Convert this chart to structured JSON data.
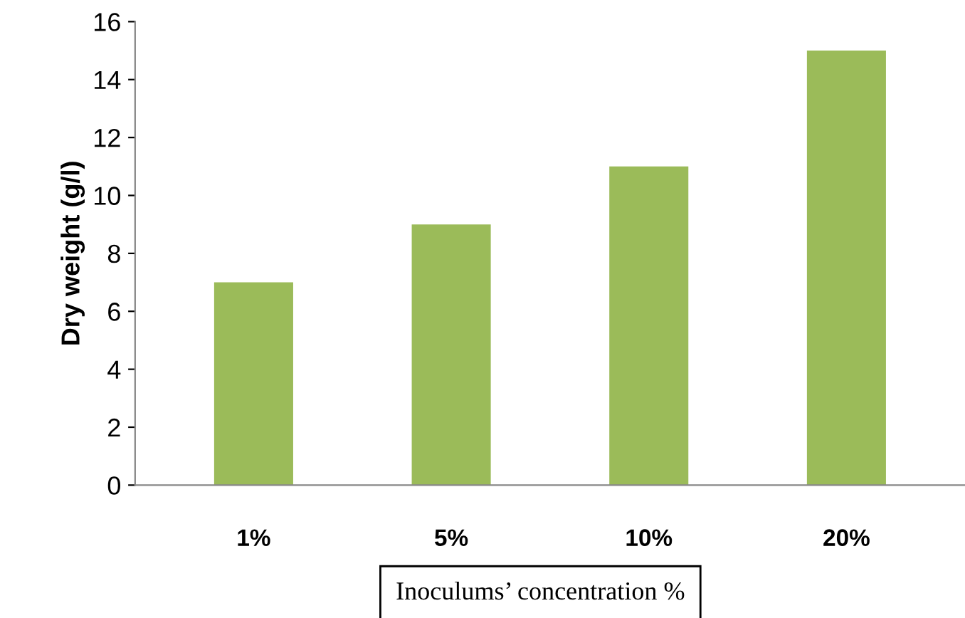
{
  "chart_data": {
    "type": "bar",
    "xlabel": "Inoculums’ concentration %",
    "ylabel": "Dry weight (g/l)",
    "categories": [
      "1%",
      "5%",
      "10%",
      "20%"
    ],
    "values": [
      7,
      9,
      11,
      15
    ],
    "color": "#9bbb59",
    "ylim": [
      0,
      16
    ],
    "yticks": [
      0,
      2,
      4,
      6,
      8,
      10,
      12,
      14,
      16
    ],
    "grid": false,
    "legend": false
  }
}
